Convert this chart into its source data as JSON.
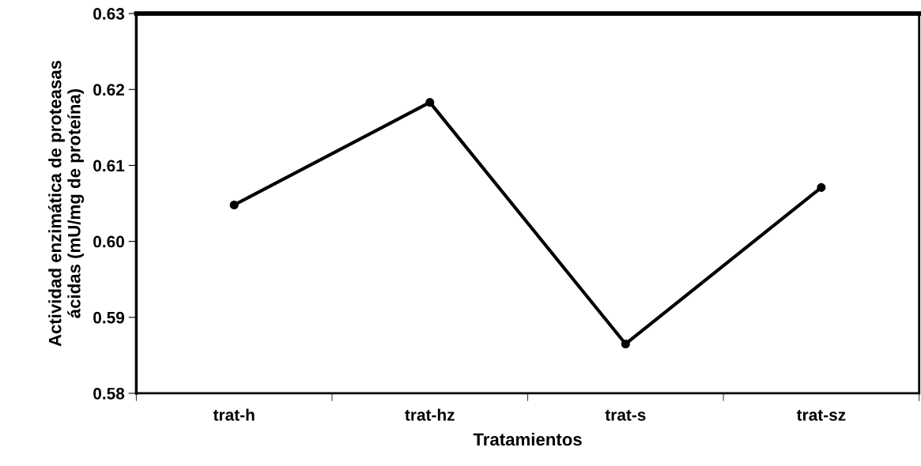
{
  "chart_data": {
    "type": "line",
    "xlabel": "Tratamientos",
    "ylabel": "Actividad enzimática de proteasas\nácidas (mU/mg de proteína)",
    "categories": [
      "trat-h",
      "trat-hz",
      "trat-s",
      "trat-sz"
    ],
    "series": [
      {
        "color": "#000000",
        "values": [
          0.6048,
          0.6183,
          0.5865,
          0.6071
        ]
      }
    ],
    "ylim": [
      0.58,
      0.63
    ],
    "yticks": [
      0.58,
      0.59,
      {
        "value": 0.6,
        "label": "0.60"
      },
      0.61,
      0.62,
      0.63
    ],
    "marker": "circle",
    "line_style": "solid",
    "grid": false
  }
}
